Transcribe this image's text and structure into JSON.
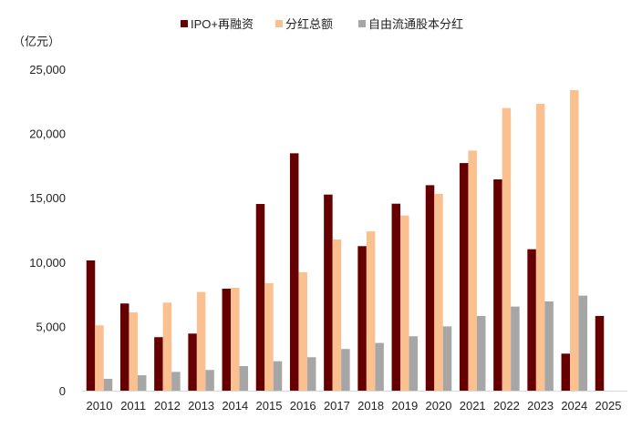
{
  "chart_data": {
    "type": "bar",
    "title": "",
    "unit_label": "（亿元）",
    "xlabel": "",
    "ylabel": "",
    "ylim": [
      0,
      25000
    ],
    "yticks": [
      0,
      5000,
      10000,
      15000,
      20000,
      25000
    ],
    "ytick_labels": [
      "0",
      "5,000",
      "10,000",
      "15,000",
      "20,000",
      "25,000"
    ],
    "grid": false,
    "legend_position": "top",
    "categories": [
      "2010",
      "2011",
      "2012",
      "2013",
      "2014",
      "2015",
      "2016",
      "2017",
      "2018",
      "2019",
      "2020",
      "2021",
      "2022",
      "2023",
      "2024",
      "2025"
    ],
    "series": [
      {
        "name": "IPO+再融资",
        "color": "#660000",
        "values": [
          10130,
          6780,
          4160,
          4440,
          7930,
          14520,
          18460,
          15250,
          11240,
          14540,
          15980,
          17700,
          16430,
          11000,
          2880,
          5810
        ]
      },
      {
        "name": "分红总额",
        "color": "#FAC090",
        "values": [
          5080,
          6090,
          6850,
          7670,
          8000,
          8360,
          9210,
          11760,
          12390,
          13620,
          15300,
          18670,
          21980,
          22310,
          23370,
          null
        ]
      },
      {
        "name": "自由流通股本分红",
        "color": "#A6A6A6",
        "values": [
          920,
          1200,
          1460,
          1610,
          1910,
          2290,
          2600,
          3240,
          3710,
          4230,
          5000,
          5810,
          6540,
          6940,
          7390,
          null
        ]
      }
    ]
  }
}
